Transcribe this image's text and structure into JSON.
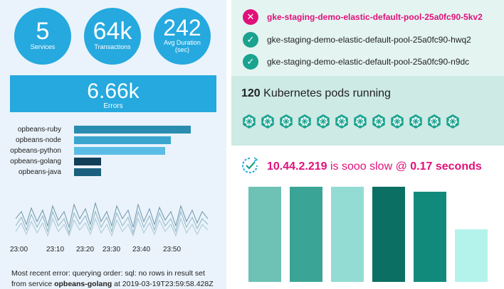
{
  "stats": [
    {
      "value": "5",
      "label": "Services"
    },
    {
      "value": "64k",
      "label": "Transactions"
    },
    {
      "value": "242",
      "label_line1": "Avg Duration",
      "label_line2": "(sec)"
    }
  ],
  "errors": {
    "value": "6.66k",
    "label": "Errors"
  },
  "service_bars": {
    "items": [
      {
        "name": "opbeans-ruby",
        "value": 1.0
      },
      {
        "name": "opbeans-node",
        "value": 0.83
      },
      {
        "name": "opbeans-python",
        "value": 0.78
      },
      {
        "name": "opbeans-golang",
        "value": 0.23
      },
      {
        "name": "opbeans-java",
        "value": 0.23
      }
    ]
  },
  "sparkline": {
    "x_ticks": [
      "23:00",
      "23:10",
      "23:20",
      "23:30",
      "23:40",
      "23:50"
    ]
  },
  "recent_error": {
    "prefix": "Most recent error: querying order: sql: no rows in result set",
    "line2_prefix": "from service ",
    "service": "opbeans-golang",
    "line2_suffix": " at 2019-03-19T23:59:58.428Z"
  },
  "nodes": [
    {
      "name": "gke-staging-demo-elastic-default-pool-25a0fc90-5kv2",
      "status": "error",
      "icon": "x-icon"
    },
    {
      "name": "gke-staging-demo-elastic-default-pool-25a0fc90-hwq2",
      "status": "ok",
      "icon": "check-icon"
    },
    {
      "name": "gke-staging-demo-elastic-default-pool-25a0fc90-n9dc",
      "status": "ok",
      "icon": "check-icon"
    }
  ],
  "pods": {
    "count": "120",
    "text": " Kubernetes pods running",
    "icon_count": 12
  },
  "slow": {
    "ip": "10.44.2.219",
    "middle": " is sooo slow @ ",
    "value": "0.17 seconds"
  },
  "slow_bars": [
    {
      "value": 1.0,
      "color": "#6dc1b5"
    },
    {
      "value": 1.0,
      "color": "#3aa596"
    },
    {
      "value": 1.0,
      "color": "#93dcd3"
    },
    {
      "value": 1.0,
      "color": "#0c6f63"
    },
    {
      "value": 0.95,
      "color": "#128a7b"
    },
    {
      "value": 0.55,
      "color": "#b3f3ec"
    }
  ],
  "colors": {
    "accent_blue": "#25a9df",
    "error_pink": "#e0107a",
    "teal": "#1aa38f"
  }
}
